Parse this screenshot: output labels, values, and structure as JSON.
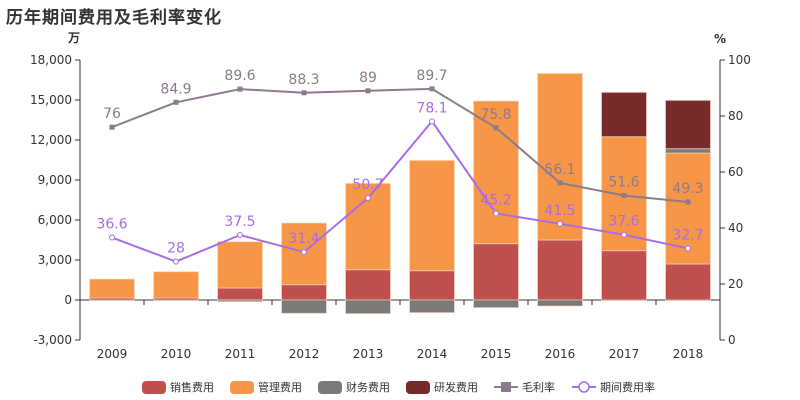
{
  "title": "历年期间费用及毛利率变化",
  "chart_data": {
    "type": "bar",
    "title": "历年期间费用及毛利率变化",
    "categories": [
      "2009",
      "2010",
      "2011",
      "2012",
      "2013",
      "2014",
      "2015",
      "2016",
      "2017",
      "2018"
    ],
    "left_axis": {
      "unit": "万",
      "ylim": [
        -3000,
        18000
      ],
      "ticks": [
        -3000,
        0,
        3000,
        6000,
        9000,
        12000,
        15000,
        18000
      ],
      "tick_labels": [
        "-3,000",
        "0",
        "3,000",
        "6,000",
        "9,000",
        "12,000",
        "15,000",
        "18,000"
      ]
    },
    "right_axis": {
      "unit": "%",
      "ylim": [
        0,
        100
      ],
      "ticks": [
        0,
        20,
        40,
        60,
        80,
        100
      ]
    },
    "legend_position": "bottom",
    "grid": false,
    "bar_series": [
      {
        "name": "销售费用",
        "color": "#c0504d",
        "values": [
          150,
          150,
          900,
          1150,
          2275,
          2200,
          4225,
          4500,
          3700,
          2700
        ]
      },
      {
        "name": "管理费用",
        "color": "#f79646",
        "values": [
          1420,
          1975,
          3475,
          4625,
          6475,
          8275,
          10700,
          12500,
          8550,
          8325
        ]
      },
      {
        "name": "财务费用",
        "color": "#7a7a7a",
        "values": [
          0,
          0,
          -125,
          -1000,
          -1025,
          -950,
          -575,
          -450,
          0,
          325
        ]
      },
      {
        "name": "研发费用",
        "color": "#772a2a",
        "values": [
          0,
          0,
          0,
          0,
          0,
          0,
          0,
          0,
          3325,
          3625
        ]
      }
    ],
    "line_series": [
      {
        "name": "毛利率",
        "color": "#8b7b8b",
        "marker": "square",
        "values": [
          76,
          84.9,
          89.6,
          88.3,
          89,
          89.7,
          75.8,
          56.1,
          51.6,
          49.3
        ]
      },
      {
        "name": "期间费用率",
        "color": "#a86ce8",
        "marker": "circle",
        "values": [
          36.6,
          28,
          37.5,
          31.4,
          50.7,
          78.1,
          45.2,
          41.5,
          37.6,
          32.7
        ]
      }
    ]
  }
}
